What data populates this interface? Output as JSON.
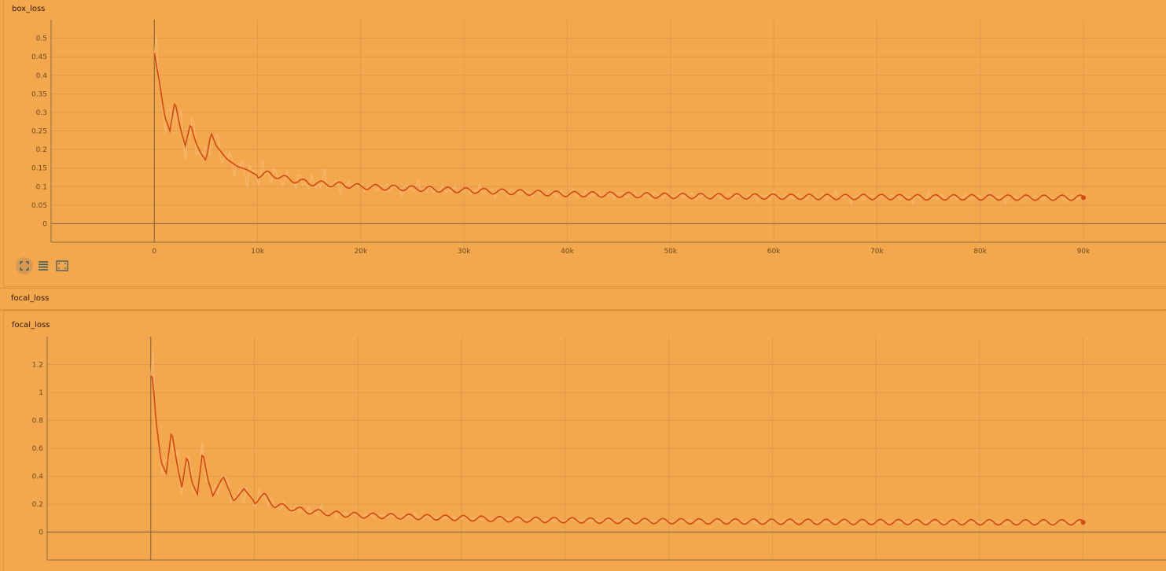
{
  "colors": {
    "background": "#f4a84e",
    "line": "#d4470f",
    "raw_line": "#f6b870",
    "grid": "#dc9a4c",
    "axis": "#8a6a40"
  },
  "toolbar": {
    "buttons": [
      {
        "name": "fullscreen-icon",
        "active": true
      },
      {
        "name": "data-table-icon",
        "active": false
      },
      {
        "name": "fit-domain-icon",
        "active": false
      }
    ]
  },
  "section": {
    "title": "focal_loss"
  },
  "chart_data": [
    {
      "type": "line",
      "title": "box_loss",
      "xlim": [
        -10000,
        98000
      ],
      "ylim": [
        -0.05,
        0.55
      ],
      "x_ticks": [
        0,
        10000,
        20000,
        30000,
        40000,
        50000,
        60000,
        70000,
        80000,
        90000
      ],
      "x_tick_labels": [
        "0",
        "10k",
        "20k",
        "30k",
        "40k",
        "50k",
        "60k",
        "70k",
        "80k",
        "90k"
      ],
      "y_ticks": [
        0,
        0.05,
        0.1,
        0.15,
        0.2,
        0.25,
        0.3,
        0.35,
        0.4,
        0.45,
        0.5
      ],
      "y_tick_labels": [
        "0",
        "0.05",
        "0.1",
        "0.15",
        "0.2",
        "0.25",
        "0.3",
        "0.35",
        "0.4",
        "0.45",
        "0.5"
      ],
      "grid": true,
      "series": [
        {
          "x": [
            0,
            500,
            1000,
            1500,
            2000,
            2500,
            3000,
            3500,
            4000,
            4500,
            5000,
            5500,
            6000,
            7000,
            8000,
            9000,
            10000,
            11000,
            13000,
            15000,
            18000,
            20000,
            25000,
            30000,
            35000,
            40000,
            45000,
            50000,
            55000,
            60000,
            65000,
            70000,
            75000,
            80000,
            85000,
            90000
          ],
          "values": [
            0.46,
            0.38,
            0.29,
            0.25,
            0.33,
            0.26,
            0.21,
            0.27,
            0.22,
            0.19,
            0.17,
            0.245,
            0.21,
            0.175,
            0.155,
            0.145,
            0.13,
            0.135,
            0.12,
            0.11,
            0.105,
            0.1,
            0.095,
            0.09,
            0.085,
            0.08,
            0.078,
            0.075,
            0.074,
            0.073,
            0.072,
            0.072,
            0.071,
            0.071,
            0.07,
            0.07
          ]
        }
      ]
    },
    {
      "type": "line",
      "title": "focal_loss",
      "xlim": [
        -10000,
        98000
      ],
      "ylim": [
        -0.2,
        1.4
      ],
      "x_ticks": [
        0,
        10000,
        20000,
        30000,
        40000,
        50000,
        60000,
        70000,
        80000,
        90000
      ],
      "y_ticks": [
        0,
        0.2,
        0.4,
        0.6,
        0.8,
        1,
        1.2
      ],
      "y_tick_labels": [
        "0",
        "0.2",
        "0.4",
        "0.6",
        "0.8",
        "1",
        "1.2"
      ],
      "grid": true,
      "series": [
        {
          "x": [
            0,
            200,
            500,
            1000,
            1500,
            2000,
            2500,
            3000,
            3500,
            4000,
            4500,
            5000,
            5500,
            6000,
            7000,
            8000,
            9000,
            10000,
            11000,
            12000,
            13000,
            15000,
            18000,
            20000,
            25000,
            30000,
            35000,
            40000,
            45000,
            50000,
            55000,
            60000,
            65000,
            70000,
            75000,
            80000,
            85000,
            90000
          ],
          "values": [
            1.12,
            1.1,
            0.8,
            0.5,
            0.42,
            0.73,
            0.5,
            0.32,
            0.55,
            0.35,
            0.27,
            0.58,
            0.38,
            0.26,
            0.4,
            0.22,
            0.31,
            0.22,
            0.26,
            0.19,
            0.18,
            0.15,
            0.13,
            0.12,
            0.11,
            0.1,
            0.09,
            0.085,
            0.08,
            0.078,
            0.076,
            0.074,
            0.073,
            0.072,
            0.071,
            0.07,
            0.07,
            0.07
          ]
        }
      ]
    }
  ]
}
